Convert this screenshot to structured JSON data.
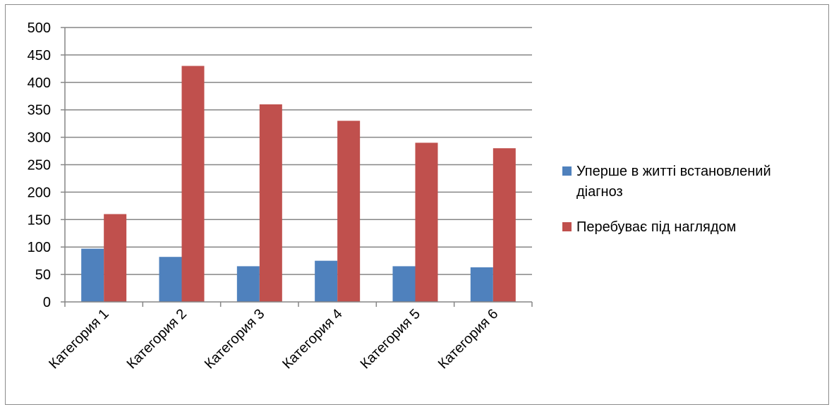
{
  "chart_data": {
    "type": "bar",
    "title": "",
    "xlabel": "",
    "ylabel": "",
    "categories": [
      "Категория 1",
      "Категория 2",
      "Категория 3",
      "Категория 4",
      "Категория 5",
      "Категория 6"
    ],
    "series": [
      {
        "name": "Уперше в житті встановлений діагноз",
        "legend_lines": [
          "Уперше в житті встановлений",
          "діагноз"
        ],
        "color": "#4f81bd",
        "values": [
          97,
          82,
          65,
          75,
          65,
          63
        ]
      },
      {
        "name": "Перебуває під наглядом",
        "legend_lines": [
          "Перебуває під наглядом"
        ],
        "color": "#c0504d",
        "values": [
          160,
          430,
          360,
          330,
          290,
          280
        ]
      }
    ],
    "ylim": [
      0,
      500
    ],
    "yticks": [
      0,
      50,
      100,
      150,
      200,
      250,
      300,
      350,
      400,
      450,
      500
    ],
    "grid": true,
    "legend_position": "right",
    "colors": {
      "grid": "#868686",
      "axis": "#868686"
    }
  }
}
